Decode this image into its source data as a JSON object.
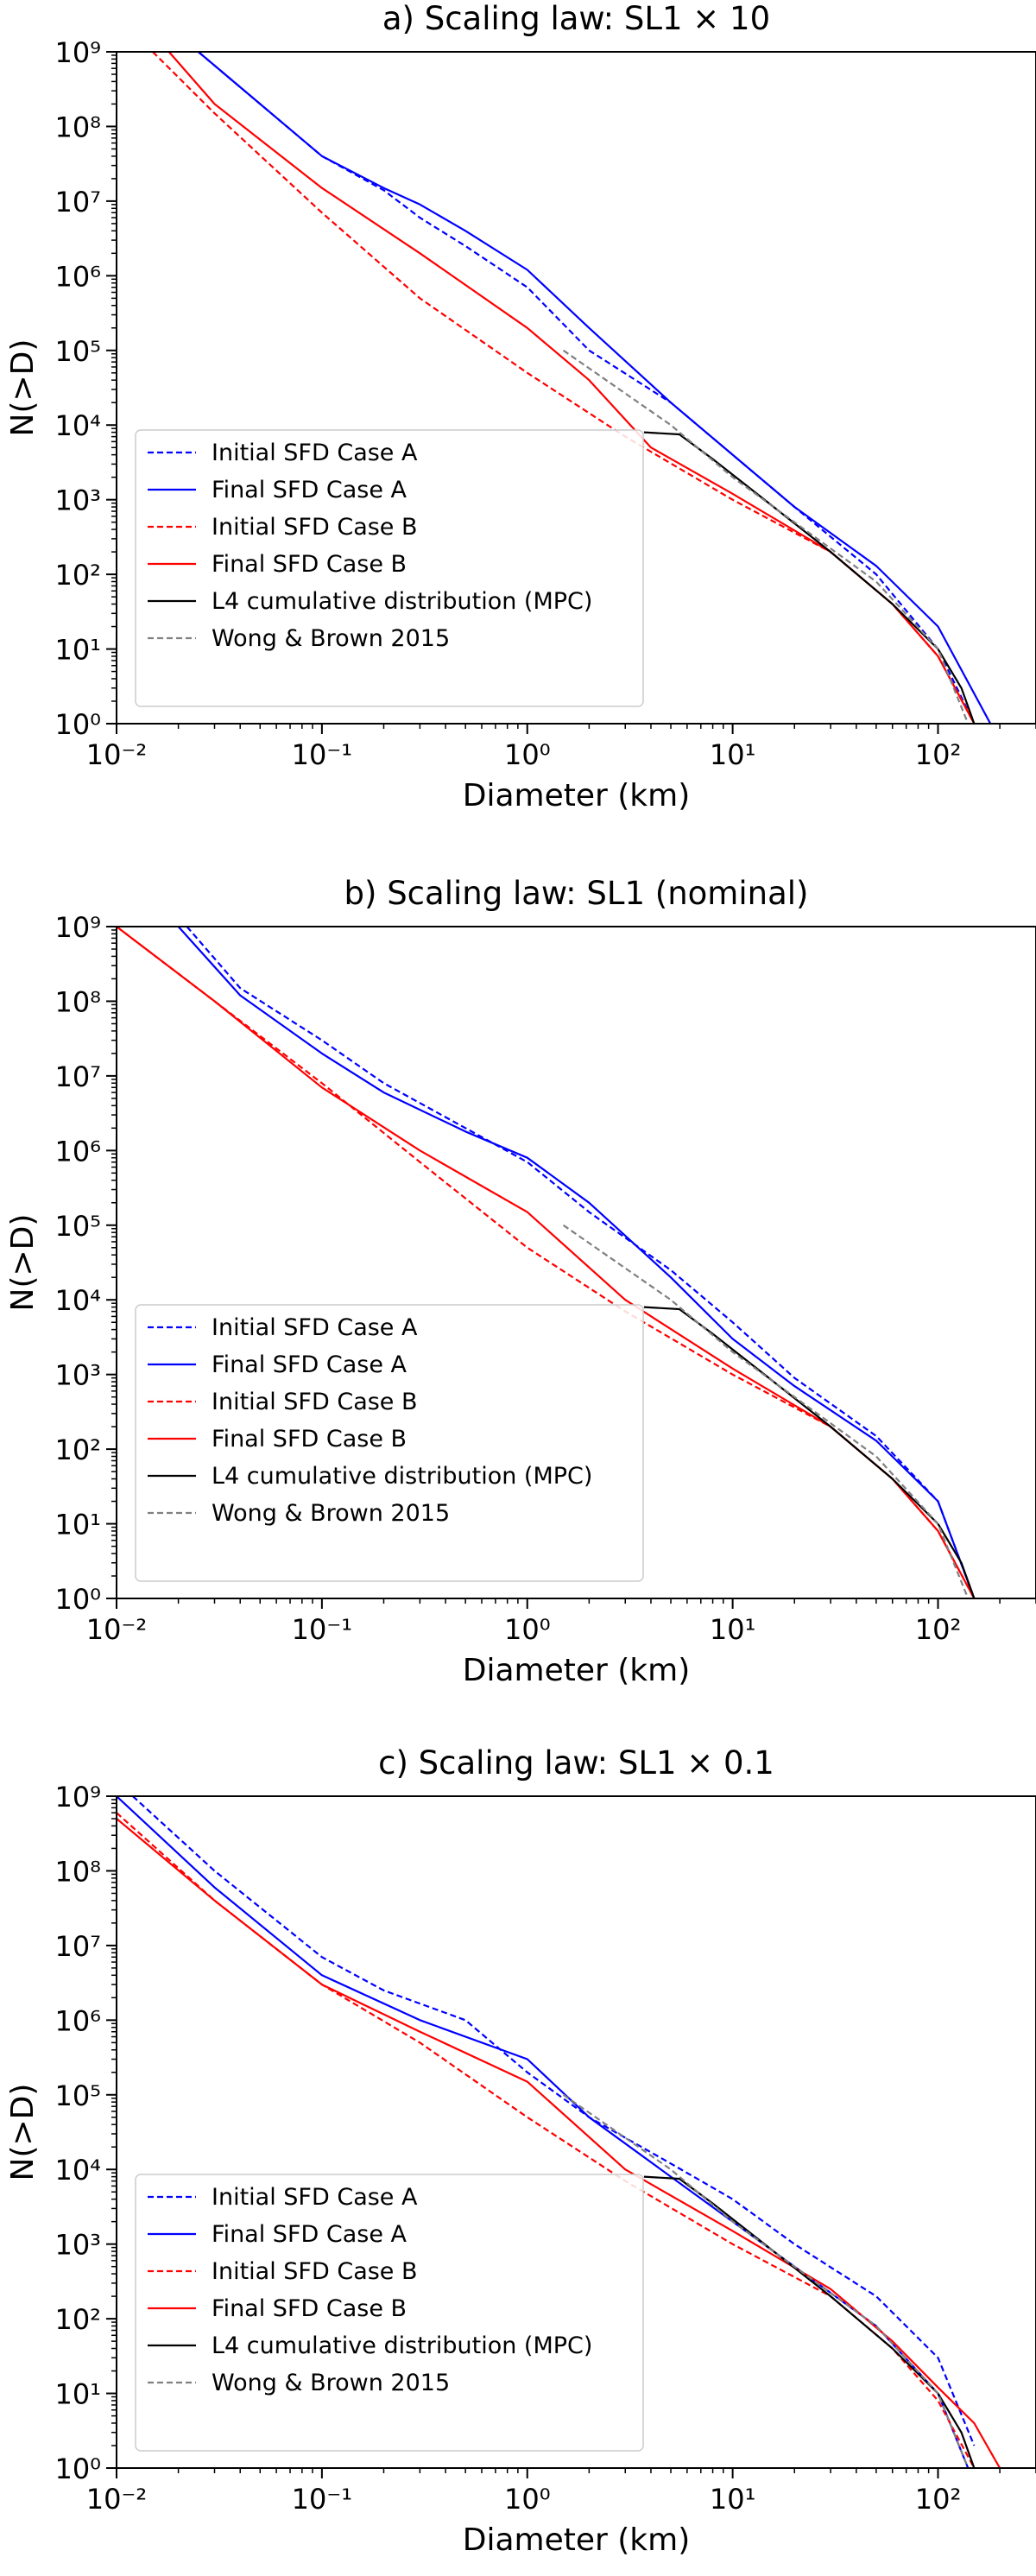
{
  "chart_data": [
    {
      "type": "line",
      "title": "a) Scaling law: SL1 × 10",
      "xlabel": "Diameter (km)",
      "ylabel": "N(>D)",
      "xscale": "log",
      "yscale": "log",
      "xlim": [
        0.01,
        300
      ],
      "ylim": [
        1,
        1000000000
      ],
      "grid": false,
      "legend_position": "lower-left",
      "x_ticks": [
        "10⁻²",
        "10⁻¹",
        "10⁰",
        "10¹",
        "10²"
      ],
      "y_ticks": [
        "10⁰",
        "10¹",
        "10²",
        "10³",
        "10⁴",
        "10⁵",
        "10⁶",
        "10⁷",
        "10⁸",
        "10⁹"
      ],
      "series": [
        {
          "name": "Initial SFD Case A",
          "color": "#0000ff",
          "dash": "dashed",
          "points": [
            [
              0.025,
              1000000000
            ],
            [
              0.05,
              200000000
            ],
            [
              0.1,
              40000000
            ],
            [
              0.2,
              14000000
            ],
            [
              0.3,
              6000000
            ],
            [
              0.5,
              2500000
            ],
            [
              1,
              700000
            ],
            [
              2,
              100000
            ],
            [
              5,
              20000
            ],
            [
              10,
              4000
            ],
            [
              20,
              800
            ],
            [
              50,
              100
            ],
            [
              100,
              10
            ],
            [
              150,
              1
            ]
          ]
        },
        {
          "name": "Final SFD Case A",
          "color": "#0000ff",
          "dash": "solid",
          "points": [
            [
              0.025,
              1000000000
            ],
            [
              0.05,
              200000000
            ],
            [
              0.1,
              40000000
            ],
            [
              0.2,
              15000000
            ],
            [
              0.3,
              9000000
            ],
            [
              0.5,
              4000000
            ],
            [
              1,
              1200000
            ],
            [
              2,
              200000
            ],
            [
              5,
              20000
            ],
            [
              10,
              4000
            ],
            [
              20,
              800
            ],
            [
              50,
              130
            ],
            [
              100,
              20
            ],
            [
              180,
              1
            ]
          ]
        },
        {
          "name": "Initial SFD Case B",
          "color": "#ff0000",
          "dash": "dashed",
          "points": [
            [
              0.015,
              1000000000
            ],
            [
              0.03,
              150000000
            ],
            [
              0.1,
              7000000
            ],
            [
              0.3,
              500000
            ],
            [
              1,
              50000
            ],
            [
              3,
              7000
            ],
            [
              10,
              1000
            ],
            [
              30,
              200
            ],
            [
              60,
              40
            ],
            [
              100,
              8
            ],
            [
              150,
              1
            ]
          ]
        },
        {
          "name": "Final SFD Case B",
          "color": "#ff0000",
          "dash": "solid",
          "points": [
            [
              0.018,
              1000000000
            ],
            [
              0.03,
              200000000
            ],
            [
              0.1,
              15000000
            ],
            [
              0.3,
              2000000
            ],
            [
              1,
              200000
            ],
            [
              2,
              40000
            ],
            [
              4,
              5000
            ],
            [
              10,
              1200
            ],
            [
              30,
              200
            ],
            [
              60,
              40
            ],
            [
              100,
              8
            ],
            [
              150,
              1
            ]
          ]
        },
        {
          "name": "L4 cumulative distribution (MPC)",
          "color": "#000000",
          "dash": "solid",
          "points": [
            [
              3.7,
              8000
            ],
            [
              5.5,
              7500
            ],
            [
              8,
              3500
            ],
            [
              15,
              900
            ],
            [
              30,
              200
            ],
            [
              60,
              40
            ],
            [
              100,
              10
            ],
            [
              130,
              3
            ],
            [
              150,
              1
            ]
          ]
        },
        {
          "name": "Wong & Brown 2015",
          "color": "#808080",
          "dash": "dashed",
          "points": [
            [
              1.5,
              100000
            ],
            [
              5,
              10000
            ],
            [
              10,
              2000
            ],
            [
              20,
              500
            ],
            [
              50,
              80
            ],
            [
              100,
              10
            ],
            [
              140,
              1
            ]
          ]
        }
      ]
    },
    {
      "type": "line",
      "title": "b) Scaling law: SL1 (nominal)",
      "xlabel": "Diameter (km)",
      "ylabel": "N(>D)",
      "xscale": "log",
      "yscale": "log",
      "xlim": [
        0.01,
        300
      ],
      "ylim": [
        1,
        1000000000
      ],
      "grid": false,
      "legend_position": "lower-left",
      "x_ticks": [
        "10⁻²",
        "10⁻¹",
        "10⁰",
        "10¹",
        "10²"
      ],
      "y_ticks": [
        "10⁰",
        "10¹",
        "10²",
        "10³",
        "10⁴",
        "10⁵",
        "10⁶",
        "10⁷",
        "10⁸",
        "10⁹"
      ],
      "series": [
        {
          "name": "Initial SFD Case A",
          "color": "#0000ff",
          "dash": "dashed",
          "points": [
            [
              0.022,
              1000000000
            ],
            [
              0.04,
              150000000
            ],
            [
              0.1,
              30000000
            ],
            [
              0.2,
              8000000
            ],
            [
              0.5,
              2000000
            ],
            [
              1,
              700000
            ],
            [
              2,
              150000
            ],
            [
              5,
              25000
            ],
            [
              10,
              5000
            ],
            [
              20,
              900
            ],
            [
              50,
              150
            ],
            [
              100,
              20
            ],
            [
              150,
              1
            ]
          ]
        },
        {
          "name": "Final SFD Case A",
          "color": "#0000ff",
          "dash": "solid",
          "points": [
            [
              0.02,
              1000000000
            ],
            [
              0.04,
              120000000
            ],
            [
              0.1,
              20000000
            ],
            [
              0.2,
              6000000
            ],
            [
              0.5,
              1800000
            ],
            [
              1,
              800000
            ],
            [
              2,
              200000
            ],
            [
              5,
              20000
            ],
            [
              10,
              3000
            ],
            [
              20,
              700
            ],
            [
              50,
              130
            ],
            [
              100,
              20
            ],
            [
              150,
              1
            ]
          ]
        },
        {
          "name": "Initial SFD Case B",
          "color": "#ff0000",
          "dash": "dashed",
          "points": [
            [
              0.01,
              1000000000
            ],
            [
              0.03,
              100000000
            ],
            [
              0.1,
              8000000
            ],
            [
              0.3,
              700000
            ],
            [
              1,
              50000
            ],
            [
              3,
              7000
            ],
            [
              10,
              1000
            ],
            [
              30,
              200
            ],
            [
              60,
              40
            ],
            [
              100,
              8
            ],
            [
              150,
              1
            ]
          ]
        },
        {
          "name": "Final SFD Case B",
          "color": "#ff0000",
          "dash": "solid",
          "points": [
            [
              0.01,
              1000000000
            ],
            [
              0.03,
              100000000
            ],
            [
              0.1,
              7000000
            ],
            [
              0.3,
              1000000
            ],
            [
              1,
              150000
            ],
            [
              3,
              10000
            ],
            [
              10,
              1200
            ],
            [
              30,
              200
            ],
            [
              60,
              40
            ],
            [
              100,
              8
            ],
            [
              150,
              1
            ]
          ]
        },
        {
          "name": "L4 cumulative distribution (MPC)",
          "color": "#000000",
          "dash": "solid",
          "points": [
            [
              3.7,
              8000
            ],
            [
              5.5,
              7500
            ],
            [
              8,
              3500
            ],
            [
              15,
              900
            ],
            [
              30,
              200
            ],
            [
              60,
              40
            ],
            [
              100,
              10
            ],
            [
              130,
              3
            ],
            [
              150,
              1
            ]
          ]
        },
        {
          "name": "Wong & Brown 2015",
          "color": "#808080",
          "dash": "dashed",
          "points": [
            [
              1.5,
              100000
            ],
            [
              5,
              10000
            ],
            [
              10,
              2000
            ],
            [
              20,
              500
            ],
            [
              50,
              80
            ],
            [
              100,
              10
            ],
            [
              140,
              1
            ]
          ]
        }
      ]
    },
    {
      "type": "line",
      "title": "c) Scaling law: SL1 × 0.1",
      "xlabel": "Diameter (km)",
      "ylabel": "N(>D)",
      "xscale": "log",
      "yscale": "log",
      "xlim": [
        0.01,
        300
      ],
      "ylim": [
        1,
        1000000000
      ],
      "grid": false,
      "legend_position": "lower-left",
      "x_ticks": [
        "10⁻²",
        "10⁻¹",
        "10⁰",
        "10¹",
        "10²"
      ],
      "y_ticks": [
        "10⁰",
        "10¹",
        "10²",
        "10³",
        "10⁴",
        "10⁵",
        "10⁶",
        "10⁷",
        "10⁸",
        "10⁹"
      ],
      "series": [
        {
          "name": "Initial SFD Case A",
          "color": "#0000ff",
          "dash": "dashed",
          "points": [
            [
              0.012,
              1000000000
            ],
            [
              0.03,
              100000000
            ],
            [
              0.1,
              7000000
            ],
            [
              0.2,
              2500000
            ],
            [
              0.5,
              1000000
            ],
            [
              1,
              200000
            ],
            [
              2,
              50000
            ],
            [
              5,
              12000
            ],
            [
              10,
              4000
            ],
            [
              20,
              1000
            ],
            [
              50,
              200
            ],
            [
              100,
              30
            ],
            [
              150,
              2
            ]
          ]
        },
        {
          "name": "Final SFD Case A",
          "color": "#0000ff",
          "dash": "solid",
          "points": [
            [
              0.01,
              1000000000
            ],
            [
              0.03,
              60000000
            ],
            [
              0.1,
              4000000
            ],
            [
              0.3,
              1000000
            ],
            [
              1,
              300000
            ],
            [
              2,
              50000
            ],
            [
              5,
              8000
            ],
            [
              10,
              2000
            ],
            [
              20,
              500
            ],
            [
              50,
              80
            ],
            [
              100,
              10
            ],
            [
              140,
              1
            ]
          ]
        },
        {
          "name": "Initial SFD Case B",
          "color": "#ff0000",
          "dash": "dashed",
          "points": [
            [
              0.01,
              600000000
            ],
            [
              0.03,
              40000000
            ],
            [
              0.1,
              3000000
            ],
            [
              0.3,
              500000
            ],
            [
              1,
              50000
            ],
            [
              3,
              7000
            ],
            [
              10,
              1000
            ],
            [
              30,
              200
            ],
            [
              60,
              40
            ],
            [
              100,
              8
            ],
            [
              150,
              1
            ]
          ]
        },
        {
          "name": "Final SFD Case B",
          "color": "#ff0000",
          "dash": "solid",
          "points": [
            [
              0.01,
              500000000
            ],
            [
              0.03,
              40000000
            ],
            [
              0.1,
              3000000
            ],
            [
              0.3,
              700000
            ],
            [
              1,
              150000
            ],
            [
              3,
              10000
            ],
            [
              10,
              1500
            ],
            [
              30,
              250
            ],
            [
              60,
              50
            ],
            [
              100,
              12
            ],
            [
              150,
              4
            ],
            [
              200,
              1
            ]
          ]
        },
        {
          "name": "L4 cumulative distribution (MPC)",
          "color": "#000000",
          "dash": "solid",
          "points": [
            [
              3.7,
              8000
            ],
            [
              5.5,
              7500
            ],
            [
              8,
              3500
            ],
            [
              15,
              900
            ],
            [
              30,
              200
            ],
            [
              60,
              40
            ],
            [
              100,
              10
            ],
            [
              130,
              3
            ],
            [
              150,
              1
            ]
          ]
        },
        {
          "name": "Wong & Brown 2015",
          "color": "#808080",
          "dash": "dashed",
          "points": [
            [
              1.5,
              100000
            ],
            [
              5,
              10000
            ],
            [
              10,
              2000
            ],
            [
              20,
              500
            ],
            [
              50,
              80
            ],
            [
              100,
              10
            ],
            [
              140,
              1
            ]
          ]
        }
      ]
    }
  ]
}
